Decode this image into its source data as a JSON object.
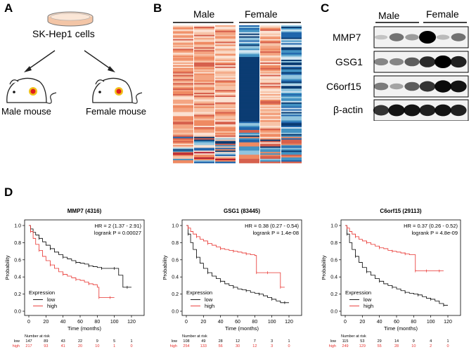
{
  "panels": {
    "a": {
      "label": "A",
      "cell_line": "SK-Hep1 cells",
      "left_mouse": "Male mouse",
      "right_mouse": "Female mouse"
    },
    "b": {
      "label": "B",
      "groups": [
        "Male",
        "Female"
      ]
    },
    "c": {
      "label": "C",
      "groups": [
        "Male",
        "Female"
      ],
      "rows": [
        "MMP7",
        "GSG1",
        "C6orf15",
        "β-actin"
      ]
    },
    "d": {
      "label": "D"
    }
  },
  "chart_data": [
    {
      "type": "line",
      "title": "MMP7 (4316)",
      "xlabel": "Time (months)",
      "ylabel": "Probability",
      "xlim": [
        0,
        120
      ],
      "ylim": [
        0,
        1
      ],
      "xticks": [
        "0",
        "20",
        "40",
        "60",
        "80",
        "100",
        "120"
      ],
      "yticks": [
        "0.0",
        "0.2",
        "0.4",
        "0.6",
        "0.8",
        "1.0"
      ],
      "hr_text": "HR = 2 (1.37 - 2.91)",
      "p_text": "logrank P = 0.00027",
      "legend": {
        "title": "Expression",
        "placement": "bottom-left"
      },
      "series": [
        {
          "name": "low",
          "color": "#000000",
          "x": [
            0,
            2,
            5,
            8,
            12,
            16,
            20,
            25,
            30,
            35,
            40,
            45,
            50,
            55,
            60,
            65,
            70,
            75,
            80,
            85,
            90,
            95,
            100,
            105,
            110,
            115,
            120
          ],
          "y": [
            1.0,
            0.96,
            0.92,
            0.89,
            0.85,
            0.81,
            0.77,
            0.73,
            0.69,
            0.66,
            0.63,
            0.61,
            0.59,
            0.57,
            0.56,
            0.55,
            0.53,
            0.52,
            0.51,
            0.5,
            0.5,
            0.5,
            0.5,
            0.42,
            0.28,
            0.28,
            0.28
          ]
        },
        {
          "name": "high",
          "color": "#e8322e",
          "x": [
            0,
            2,
            5,
            8,
            12,
            16,
            20,
            25,
            30,
            35,
            40,
            45,
            50,
            55,
            60,
            65,
            70,
            75,
            80,
            82,
            85,
            90,
            95,
            100
          ],
          "y": [
            1.0,
            0.93,
            0.85,
            0.78,
            0.71,
            0.64,
            0.59,
            0.54,
            0.5,
            0.46,
            0.43,
            0.41,
            0.39,
            0.37,
            0.36,
            0.34,
            0.32,
            0.31,
            0.28,
            0.16,
            0.16,
            0.16,
            0.16,
            0.16
          ]
        }
      ],
      "risk_table": {
        "title": "Number at risk",
        "rows": [
          {
            "label": "low",
            "values": [
              "147",
              "89",
              "43",
              "22",
              "9",
              "5",
              "1"
            ]
          },
          {
            "label": "high",
            "values": [
              "217",
              "93",
              "41",
              "20",
              "10",
              "1",
              "0"
            ]
          }
        ]
      }
    },
    {
      "type": "line",
      "title": "GSG1 (83445)",
      "xlabel": "Time (months)",
      "ylabel": "Probability",
      "xlim": [
        0,
        120
      ],
      "ylim": [
        0,
        1
      ],
      "xticks": [
        "0",
        "20",
        "40",
        "60",
        "80",
        "100",
        "120"
      ],
      "yticks": [
        "0.0",
        "0.2",
        "0.4",
        "0.6",
        "0.8",
        "1.0"
      ],
      "hr_text": "HR = 0.38 (0.27 - 0.54)",
      "p_text": "logrank P = 1.4e-08",
      "legend": {
        "title": "Expression",
        "placement": "bottom-left"
      },
      "series": [
        {
          "name": "low",
          "color": "#000000",
          "x": [
            0,
            2,
            5,
            8,
            12,
            16,
            20,
            25,
            30,
            35,
            40,
            45,
            50,
            55,
            60,
            65,
            70,
            75,
            80,
            85,
            90,
            95,
            100,
            105,
            110,
            115,
            120
          ],
          "y": [
            1.0,
            0.9,
            0.8,
            0.72,
            0.63,
            0.56,
            0.5,
            0.45,
            0.41,
            0.38,
            0.35,
            0.32,
            0.3,
            0.28,
            0.26,
            0.25,
            0.24,
            0.22,
            0.21,
            0.2,
            0.18,
            0.16,
            0.14,
            0.12,
            0.1,
            0.1,
            0.1
          ]
        },
        {
          "name": "high",
          "color": "#e8322e",
          "x": [
            0,
            2,
            5,
            8,
            12,
            16,
            20,
            25,
            30,
            35,
            40,
            45,
            50,
            55,
            60,
            65,
            70,
            75,
            80,
            82,
            85,
            90,
            95,
            100,
            105,
            110,
            115
          ],
          "y": [
            1.0,
            0.97,
            0.93,
            0.9,
            0.87,
            0.84,
            0.82,
            0.79,
            0.77,
            0.75,
            0.73,
            0.72,
            0.71,
            0.7,
            0.69,
            0.68,
            0.67,
            0.66,
            0.65,
            0.45,
            0.45,
            0.45,
            0.45,
            0.45,
            0.45,
            0.28,
            0.28
          ]
        }
      ],
      "risk_table": {
        "title": "Number at risk",
        "rows": [
          {
            "label": "low",
            "values": [
              "108",
              "49",
              "28",
              "12",
              "7",
              "3",
              "1"
            ]
          },
          {
            "label": "high",
            "values": [
              "254",
              "133",
              "56",
              "30",
              "12",
              "3",
              "0"
            ]
          }
        ]
      }
    },
    {
      "type": "line",
      "title": "C6orf15 (29113)",
      "xlabel": "Time (months)",
      "ylabel": "Probability",
      "xlim": [
        0,
        120
      ],
      "ylim": [
        0,
        1
      ],
      "xticks": [
        "0",
        "20",
        "40",
        "60",
        "80",
        "100",
        "120"
      ],
      "yticks": [
        "0.0",
        "0.2",
        "0.4",
        "0.6",
        "0.8",
        "1.0"
      ],
      "hr_text": "HR = 0.37 (0.26 - 0.52)",
      "p_text": "logrank P = 4.8e-09",
      "legend": {
        "title": "Expression",
        "placement": "bottom-left"
      },
      "series": [
        {
          "name": "low",
          "color": "#000000",
          "x": [
            0,
            2,
            5,
            8,
            12,
            16,
            20,
            25,
            30,
            35,
            40,
            45,
            50,
            55,
            60,
            65,
            70,
            75,
            80,
            85,
            90,
            95,
            100,
            105,
            110,
            115,
            120
          ],
          "y": [
            1.0,
            0.9,
            0.8,
            0.72,
            0.64,
            0.57,
            0.51,
            0.46,
            0.42,
            0.38,
            0.35,
            0.32,
            0.3,
            0.28,
            0.26,
            0.24,
            0.22,
            0.21,
            0.2,
            0.19,
            0.17,
            0.15,
            0.14,
            0.12,
            0.09,
            0.07,
            0.07
          ]
        },
        {
          "name": "high",
          "color": "#e8322e",
          "x": [
            0,
            2,
            5,
            8,
            12,
            16,
            20,
            25,
            30,
            35,
            40,
            45,
            50,
            55,
            60,
            65,
            70,
            75,
            80,
            82,
            85,
            90,
            95,
            100,
            105,
            110,
            115
          ],
          "y": [
            1.0,
            0.97,
            0.93,
            0.9,
            0.87,
            0.84,
            0.82,
            0.8,
            0.78,
            0.76,
            0.74,
            0.73,
            0.71,
            0.7,
            0.69,
            0.68,
            0.67,
            0.66,
            0.66,
            0.47,
            0.47,
            0.47,
            0.47,
            0.47,
            0.47,
            0.47,
            0.47
          ]
        }
      ],
      "risk_table": {
        "title": "Number at risk",
        "rows": [
          {
            "label": "low",
            "values": [
              "115",
              "53",
              "29",
              "14",
              "9",
              "4",
              "1"
            ]
          },
          {
            "label": "high",
            "values": [
              "249",
              "129",
              "55",
              "28",
              "10",
              "2",
              "0"
            ]
          }
        ]
      }
    }
  ]
}
